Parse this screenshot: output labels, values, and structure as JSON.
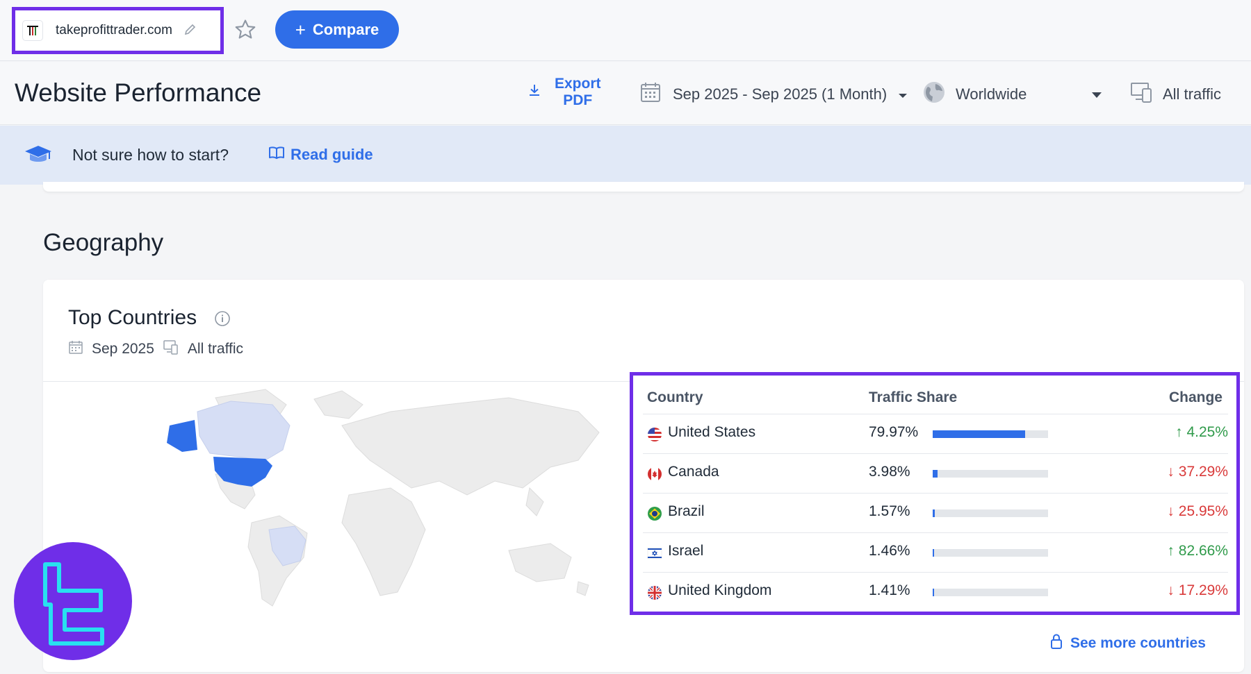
{
  "topbar": {
    "domain": "takeprofittrader.com",
    "favicon_icon": "tp-logo-icon",
    "edit_icon": "pencil-icon",
    "star_icon": "star-icon",
    "compare_label": "Compare",
    "compare_plus": "+"
  },
  "header": {
    "title": "Website Performance",
    "export_line1": "Export",
    "export_line2": "PDF",
    "date_range": "Sep 2025 - Sep 2025 (1 Month)",
    "region": "Worldwide",
    "traffic": "All traffic"
  },
  "banner": {
    "question": "Not sure how to start?",
    "guide_label": "Read guide"
  },
  "geography": {
    "section_title": "Geography",
    "card_title": "Top Countries",
    "meta_date": "Sep 2025",
    "meta_traffic": "All traffic",
    "table": {
      "headers": {
        "country": "Country",
        "share": "Traffic Share",
        "change": "Change"
      },
      "rows": [
        {
          "country": "United States",
          "share": "79.97%",
          "share_value": 79.97,
          "change": "4.25%",
          "direction": "up",
          "arrow": "↑"
        },
        {
          "country": "Canada",
          "share": "3.98%",
          "share_value": 3.98,
          "change": "37.29%",
          "direction": "down",
          "arrow": "↓"
        },
        {
          "country": "Brazil",
          "share": "1.57%",
          "share_value": 1.57,
          "change": "25.95%",
          "direction": "down",
          "arrow": "↓"
        },
        {
          "country": "Israel",
          "share": "1.46%",
          "share_value": 1.46,
          "change": "82.66%",
          "direction": "up",
          "arrow": "↑"
        },
        {
          "country": "United Kingdom",
          "share": "1.41%",
          "share_value": 1.41,
          "change": "17.29%",
          "direction": "down",
          "arrow": "↓"
        }
      ]
    },
    "see_more_label": "See more countries"
  },
  "colors": {
    "accent": "#2f6ee8",
    "highlight": "#6f2ee8",
    "up": "#2f9a4a",
    "down": "#d93a3a"
  }
}
